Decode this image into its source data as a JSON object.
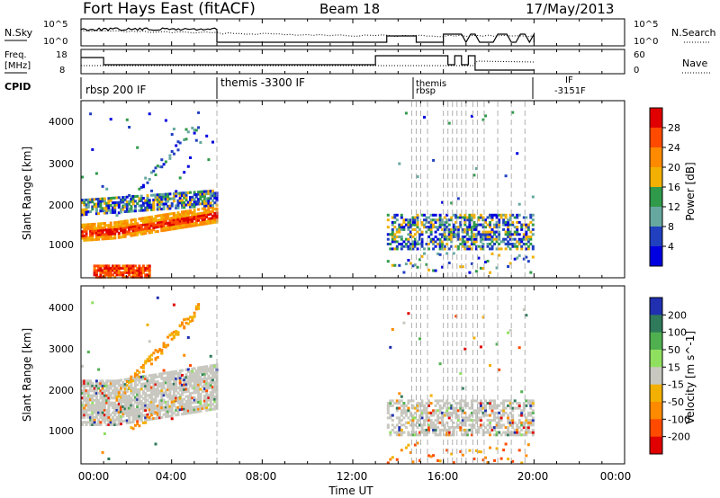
{
  "header": {
    "station": "Fort Hays East (fitACF)",
    "beam": "Beam 18",
    "date": "17/May/2013"
  },
  "noise_panel": {
    "left_label": "N.Sky",
    "right_label": "N.Search",
    "left_ticks": [
      "10^5",
      "10^0"
    ],
    "right_ticks": [
      "10^5",
      "10^0"
    ]
  },
  "freq_panel": {
    "left_label_line1": "Freq.",
    "left_label_line2": "[MHz]",
    "right_label": "Nave",
    "left_ticks": [
      "18",
      "8"
    ],
    "right_ticks": [
      "60",
      "0"
    ]
  },
  "cpid": {
    "label": "CPID",
    "entries": [
      "rbsp 200 IF",
      "themis -3300 IF",
      "themis",
      "rbsp",
      "IF",
      "-3151F"
    ]
  },
  "time_axis": {
    "label": "Time UT",
    "ticks": [
      "00:00",
      "04:00",
      "08:00",
      "12:00",
      "16:00",
      "20:00",
      "00:00"
    ]
  },
  "power_panel": {
    "ylabel": "Slant Range [km]",
    "yticks": [
      "4000",
      "3000",
      "2000",
      "1000"
    ],
    "colorbar_label": "Power [dB]",
    "colorbar_ticks": [
      "28",
      "24",
      "20",
      "16",
      "12",
      "8",
      "4"
    ],
    "colorbar_colors": [
      "#e00000",
      "#ff4a00",
      "#ff8a00",
      "#f2b000",
      "#2f9a4a",
      "#66a8a0",
      "#2040c0",
      "#0000e0"
    ]
  },
  "velocity_panel": {
    "ylabel": "Slant Range [km]",
    "yticks": [
      "4000",
      "3000",
      "2000",
      "1000"
    ],
    "colorbar_label": "Velocity [m s^-1]",
    "colorbar_ticks": [
      "200",
      "100",
      "50",
      "15",
      "-15",
      "-50",
      "-100",
      "-200"
    ],
    "colorbar_colors": [
      "#2030b0",
      "#2e7a5a",
      "#50b050",
      "#90e060",
      "#c8c8c0",
      "#f2b000",
      "#ff8a00",
      "#ff4a00",
      "#e00000"
    ]
  },
  "chart_data": [
    {
      "type": "heatmap",
      "title": "Power",
      "xlabel": "Time UT",
      "ylabel": "Slant Range [km]",
      "xlim": [
        0,
        24
      ],
      "ylim": [
        150,
        4550
      ],
      "zlabel": "Power [dB]",
      "zlim": [
        0,
        30
      ],
      "regions": [
        {
          "t": [
            0.0,
            6.0
          ],
          "range": [
            1300,
            1700
          ],
          "power": 28
        },
        {
          "t": [
            0.0,
            6.0
          ],
          "range": [
            1800,
            2300
          ],
          "power": 16
        },
        {
          "t": [
            0.5,
            3.0
          ],
          "range": [
            200,
            500
          ],
          "power": 28
        },
        {
          "t": [
            13.5,
            20.0
          ],
          "range": [
            900,
            1700
          ],
          "power": 10
        }
      ]
    },
    {
      "type": "heatmap",
      "title": "Velocity",
      "xlabel": "Time UT",
      "ylabel": "Slant Range [km]",
      "xlim": [
        0,
        24
      ],
      "ylim": [
        150,
        4550
      ],
      "zlabel": "Velocity [m s^-1]",
      "zlim": [
        -250,
        250
      ],
      "regions": [
        {
          "t": [
            0.0,
            6.0
          ],
          "range": [
            1300,
            2300
          ],
          "velocity": 0
        },
        {
          "t": [
            1.5,
            5.0
          ],
          "range": [
            1200,
            4200
          ],
          "velocity": -50
        },
        {
          "t": [
            13.5,
            20.0
          ],
          "range": [
            900,
            1700
          ],
          "velocity": 0
        }
      ]
    }
  ]
}
